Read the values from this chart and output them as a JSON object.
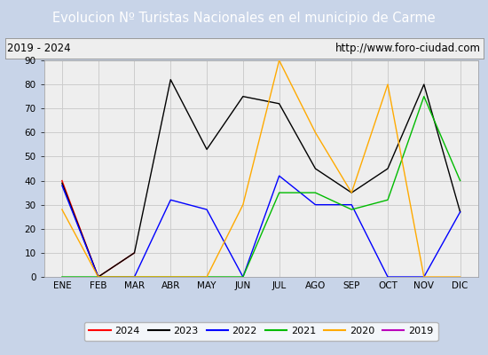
{
  "title": "Evolucion Nº Turistas Nacionales en el municipio de Carme",
  "subtitle_left": "2019 - 2024",
  "subtitle_right": "http://www.foro-ciudad.com",
  "title_bg_color": "#4d7ebf",
  "title_text_color": "#ffffff",
  "subtitle_bg_color": "#eeeeee",
  "plot_bg_color": "#eeeeee",
  "outer_bg_color": "#c8d4e8",
  "months": [
    "ENE",
    "FEB",
    "MAR",
    "ABR",
    "MAY",
    "JUN",
    "JUL",
    "AGO",
    "SEP",
    "OCT",
    "NOV",
    "DIC"
  ],
  "ylim": [
    0,
    90
  ],
  "yticks": [
    0,
    10,
    20,
    30,
    40,
    50,
    60,
    70,
    80,
    90
  ],
  "series": {
    "2024": {
      "color": "#ff0000",
      "data": [
        40,
        0,
        10,
        null,
        null,
        null,
        null,
        null,
        null,
        null,
        null,
        null
      ]
    },
    "2023": {
      "color": "#000000",
      "data": [
        39,
        0,
        10,
        82,
        53,
        75,
        72,
        45,
        35,
        45,
        80,
        27
      ]
    },
    "2022": {
      "color": "#0000ff",
      "data": [
        38,
        0,
        0,
        32,
        28,
        0,
        42,
        30,
        30,
        0,
        0,
        27
      ]
    },
    "2021": {
      "color": "#00bb00",
      "data": [
        0,
        0,
        0,
        0,
        0,
        0,
        35,
        35,
        28,
        32,
        75,
        40
      ]
    },
    "2020": {
      "color": "#ffaa00",
      "data": [
        28,
        0,
        0,
        0,
        0,
        30,
        90,
        60,
        35,
        80,
        0,
        0
      ]
    },
    "2019": {
      "color": "#bb00bb",
      "data": [
        null,
        null,
        null,
        null,
        null,
        null,
        null,
        null,
        null,
        null,
        null,
        27
      ]
    }
  },
  "legend_order": [
    "2024",
    "2023",
    "2022",
    "2021",
    "2020",
    "2019"
  ]
}
